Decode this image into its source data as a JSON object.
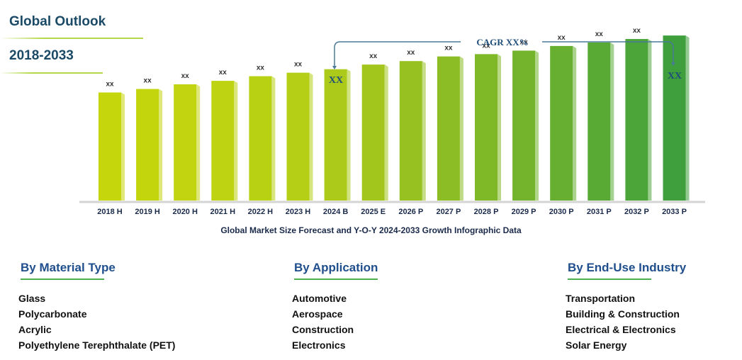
{
  "header": {
    "title": "Global Outlook",
    "period": "2018-2033"
  },
  "chart_data": {
    "type": "bar",
    "categories": [
      "2018 H",
      "2019 H",
      "2020 H",
      "2021 H",
      "2022 H",
      "2023 H",
      "2024 B",
      "2025 E",
      "2026 P",
      "2027 P",
      "2028 P",
      "2029 P",
      "2030 P",
      "2031 P",
      "2032 P",
      "2033 P"
    ],
    "values": [
      93,
      96,
      100,
      103,
      107,
      110,
      113,
      117,
      120,
      124,
      126,
      129,
      133,
      136,
      139,
      142
    ],
    "data_labels": [
      "xx",
      "xx",
      "xx",
      "xx",
      "xx",
      "xx",
      "",
      "xx",
      "xx",
      "xx",
      "xx",
      "xx",
      "xx",
      "xx",
      "xx",
      ""
    ],
    "ylim": [
      0,
      150
    ],
    "colors": [
      "#c6d60c",
      "#c3d50d",
      "#c1d40f",
      "#bed311",
      "#b9d113",
      "#b4cf15",
      "#acca19",
      "#a2c61c",
      "#97c120",
      "#8cbd24",
      "#80b928",
      "#73b42c",
      "#66af30",
      "#59aa35",
      "#4ca539",
      "#3f9f3d"
    ],
    "cagr_label": "CAGR XX%",
    "start_label": "XX",
    "end_label": "XX",
    "caption": "Global Market Size Forecast and Y-O-Y 2024-2033 Growth Infographic Data"
  },
  "segments": [
    {
      "title": "By Material Type",
      "items": [
        "Glass",
        "Polycarbonate",
        "Acrylic",
        "Polyethylene Terephthalate (PET)"
      ]
    },
    {
      "title": "By Application",
      "items": [
        "Automotive",
        "Aerospace",
        "Construction",
        "Electronics"
      ]
    },
    {
      "title": "By End-Use Industry",
      "items": [
        "Transportation",
        "Building & Construction",
        "Electrical & Electronics",
        "Solar Energy"
      ]
    }
  ]
}
